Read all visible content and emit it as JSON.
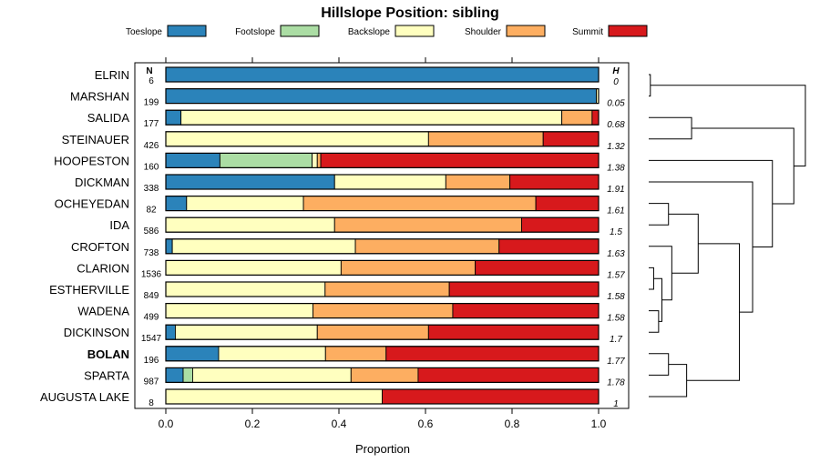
{
  "chart_data": {
    "type": "bar",
    "orientation": "horizontal-stacked",
    "title": "Hillslope Position: sibling",
    "xlabel": "Proportion",
    "ylabel": "",
    "xlim": [
      0,
      1
    ],
    "ticks": [
      "0.0",
      "0.2",
      "0.4",
      "0.6",
      "0.8",
      "1.0"
    ],
    "tick_values": [
      0,
      0.2,
      0.4,
      0.6,
      0.8,
      1.0
    ],
    "n_header": "N",
    "h_header": "H",
    "legend_position": "top",
    "legend": [
      {
        "name": "Toeslope",
        "color": "#2b83ba"
      },
      {
        "name": "Footslope",
        "color": "#abdda4"
      },
      {
        "name": "Backslope",
        "color": "#ffffbf"
      },
      {
        "name": "Shoulder",
        "color": "#fdae61"
      },
      {
        "name": "Summit",
        "color": "#d7191c"
      }
    ],
    "rows": [
      {
        "name": "ELRIN",
        "n": "6",
        "h": "0",
        "bold": false,
        "values": [
          1.0,
          0,
          0,
          0,
          0
        ]
      },
      {
        "name": "MARSHAN",
        "n": "199",
        "h": "0.05",
        "bold": false,
        "values": [
          0.995,
          0,
          0.005,
          0,
          0
        ]
      },
      {
        "name": "SALIDA",
        "n": "177",
        "h": "0.68",
        "bold": false,
        "values": [
          0.035,
          0,
          0.88,
          0.07,
          0.015
        ]
      },
      {
        "name": "STEINAUER",
        "n": "426",
        "h": "1.32",
        "bold": false,
        "values": [
          0,
          0,
          0.607,
          0.265,
          0.128
        ]
      },
      {
        "name": "HOOPESTON",
        "n": "160",
        "h": "1.38",
        "bold": false,
        "values": [
          0.125,
          0.213,
          0.012,
          0.008,
          0.642
        ]
      },
      {
        "name": "DICKMAN",
        "n": "338",
        "h": "1.91",
        "bold": false,
        "values": [
          0.39,
          0,
          0.257,
          0.148,
          0.205
        ]
      },
      {
        "name": "OCHEYEDAN",
        "n": "82",
        "h": "1.61",
        "bold": false,
        "values": [
          0.048,
          0,
          0.27,
          0.537,
          0.145
        ]
      },
      {
        "name": "IDA",
        "n": "586",
        "h": "1.5",
        "bold": false,
        "values": [
          0,
          0,
          0.39,
          0.432,
          0.178
        ]
      },
      {
        "name": "CROFTON",
        "n": "738",
        "h": "1.63",
        "bold": false,
        "values": [
          0.015,
          0,
          0.423,
          0.332,
          0.23
        ]
      },
      {
        "name": "CLARION",
        "n": "1536",
        "h": "1.57",
        "bold": false,
        "values": [
          0,
          0,
          0.405,
          0.31,
          0.285
        ]
      },
      {
        "name": "ESTHERVILLE",
        "n": "849",
        "h": "1.58",
        "bold": false,
        "values": [
          0,
          0,
          0.368,
          0.287,
          0.345
        ]
      },
      {
        "name": "WADENA",
        "n": "499",
        "h": "1.58",
        "bold": false,
        "values": [
          0,
          0,
          0.34,
          0.323,
          0.337
        ]
      },
      {
        "name": "DICKINSON",
        "n": "1547",
        "h": "1.7",
        "bold": false,
        "values": [
          0.022,
          0,
          0.328,
          0.257,
          0.393
        ]
      },
      {
        "name": "BOLAN",
        "n": "196",
        "h": "1.77",
        "bold": true,
        "values": [
          0.122,
          0,
          0.247,
          0.14,
          0.491
        ]
      },
      {
        "name": "SPARTA",
        "n": "987",
        "h": "1.78",
        "bold": false,
        "values": [
          0.04,
          0.022,
          0.366,
          0.155,
          0.417
        ]
      },
      {
        "name": "AUGUSTA LAKE",
        "n": "8",
        "h": "1",
        "bold": false,
        "values": [
          0,
          0,
          0.5,
          0,
          0.5
        ]
      }
    ],
    "dendrogram": {
      "leaves": [
        "ELRIN",
        "MARSHAN",
        "SALIDA",
        "STEINAUER",
        "HOOPESTON",
        "DICKMAN",
        "OCHEYEDAN",
        "IDA",
        "CROFTON",
        "CLARION",
        "ESTHERVILLE",
        "WADENA",
        "DICKINSON",
        "BOLAN",
        "SPARTA",
        "AUGUSTA LAKE"
      ],
      "merges": [
        {
          "a": 0,
          "b": 1,
          "h": 0.01
        },
        {
          "a": 2,
          "b": 3,
          "h": 0.26
        },
        {
          "a": 9,
          "b": 10,
          "h": 0.03
        },
        {
          "a": 11,
          "b": 12,
          "h": 0.06
        },
        {
          "a": "m2",
          "b": "m3",
          "h": 0.08
        },
        {
          "a": 8,
          "b": "m4",
          "h": 0.14
        },
        {
          "a": 6,
          "b": 7,
          "h": 0.12
        },
        {
          "a": "m6",
          "b": "m5",
          "h": 0.3
        },
        {
          "a": 13,
          "b": 14,
          "h": 0.12
        },
        {
          "a": "m8",
          "b": 15,
          "h": 0.23
        },
        {
          "a": "m7",
          "b": "m9",
          "h": 0.55
        },
        {
          "a": 5,
          "b": "m10",
          "h": 0.63
        },
        {
          "a": 4,
          "b": "m11",
          "h": 0.75
        },
        {
          "a": "m1",
          "b": "m12",
          "h": 0.88
        },
        {
          "a": "m0",
          "b": "m13",
          "h": 0.95
        }
      ]
    }
  }
}
